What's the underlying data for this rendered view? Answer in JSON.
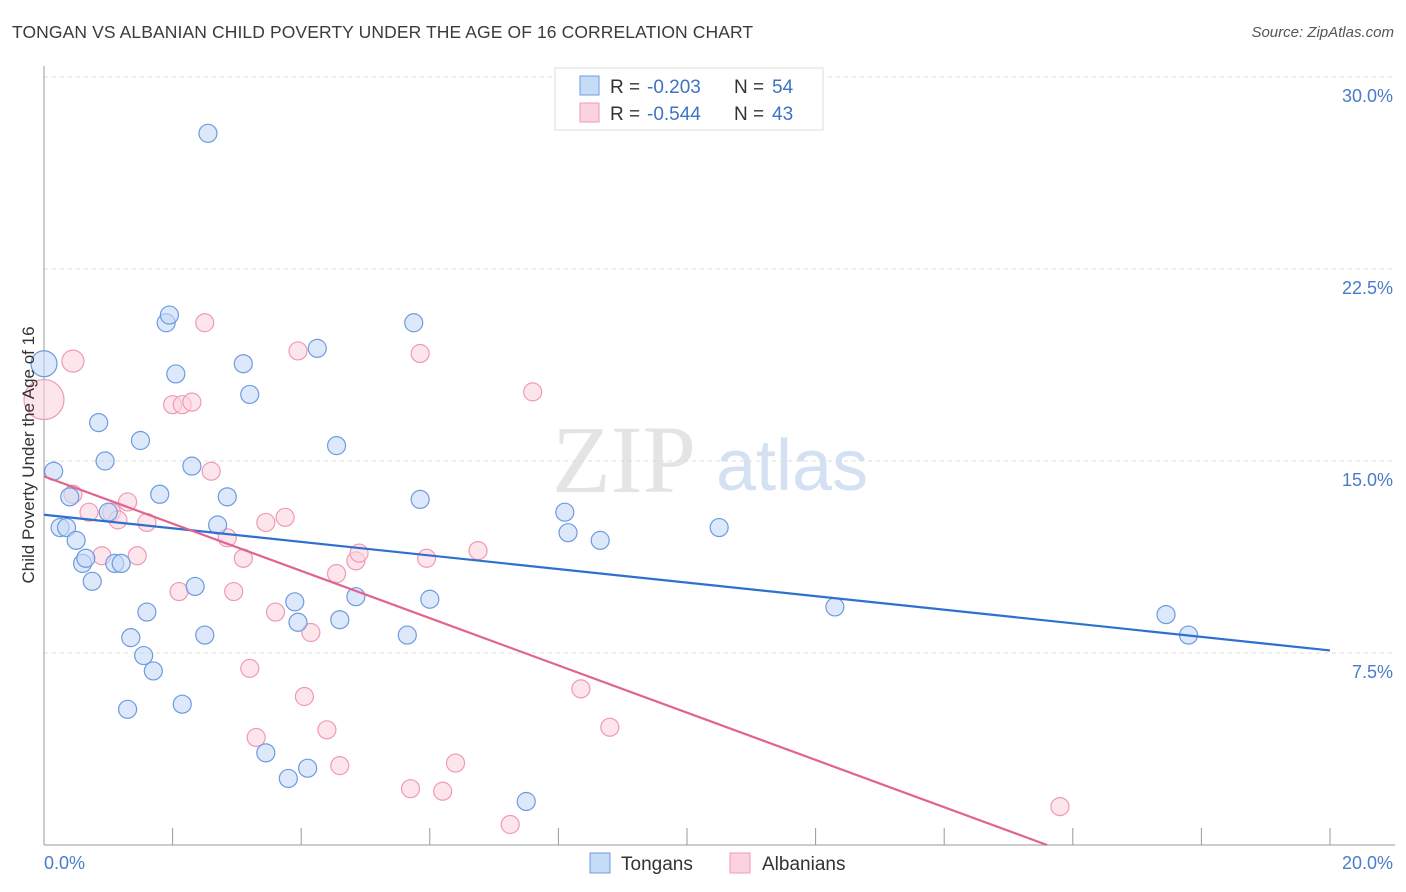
{
  "header": {
    "title": "TONGAN VS ALBANIAN CHILD POVERTY UNDER THE AGE OF 16 CORRELATION CHART",
    "source": "Source: ZipAtlas.com"
  },
  "watermark": {
    "zip": "ZIP",
    "atlas": "atlas"
  },
  "legend_top": {
    "r_label": "R =",
    "n_label": "N =",
    "rows": [
      {
        "r": "-0.203",
        "n": "54"
      },
      {
        "r": "-0.544",
        "n": "43"
      }
    ]
  },
  "chart_data": {
    "type": "scatter",
    "ylabel": "Child Poverty Under the Age of 16",
    "xlim": [
      0,
      20
    ],
    "ylim": [
      0,
      30
    ],
    "x_tick_labels": [
      "0.0%",
      "20.0%"
    ],
    "y_ticks": [
      7.5,
      15.0,
      22.5,
      30.0
    ],
    "y_tick_labels": [
      "7.5%",
      "15.0%",
      "22.5%",
      "30.0%"
    ],
    "colors": {
      "tongans": "#6d9be0",
      "albanians": "#f09ab5",
      "tongans_line": "#2f6fd0",
      "albanians_line": "#e0648f"
    },
    "series": [
      {
        "name": "Tongans",
        "trend": {
          "x": [
            0,
            20
          ],
          "y": [
            12.9,
            7.6
          ]
        },
        "points": [
          [
            0.0,
            18.8
          ],
          [
            0.15,
            14.6
          ],
          [
            0.25,
            12.4
          ],
          [
            0.35,
            12.4
          ],
          [
            0.4,
            13.6
          ],
          [
            0.5,
            11.9
          ],
          [
            0.6,
            11.0
          ],
          [
            0.65,
            11.2
          ],
          [
            0.75,
            10.3
          ],
          [
            0.85,
            16.5
          ],
          [
            0.95,
            15.0
          ],
          [
            1.0,
            13.0
          ],
          [
            1.1,
            11.0
          ],
          [
            1.2,
            11.0
          ],
          [
            1.3,
            5.3
          ],
          [
            1.35,
            8.1
          ],
          [
            1.5,
            15.8
          ],
          [
            1.55,
            7.4
          ],
          [
            1.6,
            9.1
          ],
          [
            1.7,
            6.8
          ],
          [
            1.8,
            13.7
          ],
          [
            1.9,
            20.4
          ],
          [
            1.95,
            20.7
          ],
          [
            2.05,
            18.4
          ],
          [
            2.15,
            5.5
          ],
          [
            2.3,
            14.8
          ],
          [
            2.35,
            10.1
          ],
          [
            2.5,
            8.2
          ],
          [
            2.55,
            27.8
          ],
          [
            2.7,
            12.5
          ],
          [
            2.85,
            13.6
          ],
          [
            3.1,
            18.8
          ],
          [
            3.2,
            17.6
          ],
          [
            3.45,
            3.6
          ],
          [
            3.8,
            2.6
          ],
          [
            3.9,
            9.5
          ],
          [
            3.95,
            8.7
          ],
          [
            4.1,
            3.0
          ],
          [
            4.25,
            19.4
          ],
          [
            4.55,
            15.6
          ],
          [
            4.6,
            8.8
          ],
          [
            4.85,
            9.7
          ],
          [
            5.65,
            8.2
          ],
          [
            5.75,
            20.4
          ],
          [
            5.85,
            13.5
          ],
          [
            6.0,
            9.6
          ],
          [
            7.5,
            1.7
          ],
          [
            8.1,
            13.0
          ],
          [
            8.15,
            12.2
          ],
          [
            8.65,
            11.9
          ],
          [
            10.5,
            12.4
          ],
          [
            12.3,
            9.3
          ],
          [
            17.45,
            9.0
          ],
          [
            17.8,
            8.2
          ]
        ]
      },
      {
        "name": "Albanians",
        "trend": {
          "x": [
            0,
            15.6
          ],
          "y": [
            14.4,
            0
          ]
        },
        "points": [
          [
            0.0,
            17.4
          ],
          [
            0.45,
            13.7
          ],
          [
            0.45,
            18.9
          ],
          [
            0.7,
            13.0
          ],
          [
            0.9,
            11.3
          ],
          [
            1.05,
            13.0
          ],
          [
            1.15,
            12.7
          ],
          [
            1.3,
            13.4
          ],
          [
            1.45,
            11.3
          ],
          [
            1.6,
            12.6
          ],
          [
            2.0,
            17.2
          ],
          [
            2.15,
            17.2
          ],
          [
            2.1,
            9.9
          ],
          [
            2.3,
            17.3
          ],
          [
            2.5,
            20.4
          ],
          [
            2.6,
            14.6
          ],
          [
            2.85,
            12.0
          ],
          [
            2.95,
            9.9
          ],
          [
            3.1,
            11.2
          ],
          [
            3.2,
            6.9
          ],
          [
            3.3,
            4.2
          ],
          [
            3.45,
            12.6
          ],
          [
            3.6,
            9.1
          ],
          [
            3.75,
            12.8
          ],
          [
            3.95,
            19.3
          ],
          [
            4.05,
            5.8
          ],
          [
            4.15,
            8.3
          ],
          [
            4.4,
            4.5
          ],
          [
            4.55,
            10.6
          ],
          [
            4.6,
            3.1
          ],
          [
            4.85,
            11.1
          ],
          [
            4.9,
            11.4
          ],
          [
            5.7,
            2.2
          ],
          [
            5.85,
            19.2
          ],
          [
            5.95,
            11.2
          ],
          [
            6.2,
            2.1
          ],
          [
            6.4,
            3.2
          ],
          [
            7.25,
            0.8
          ],
          [
            7.6,
            17.7
          ],
          [
            8.35,
            6.1
          ],
          [
            8.8,
            4.6
          ],
          [
            15.8,
            1.5
          ],
          [
            6.75,
            11.5
          ]
        ]
      }
    ]
  },
  "legend_bottom": [
    "Tongans",
    "Albanians"
  ]
}
